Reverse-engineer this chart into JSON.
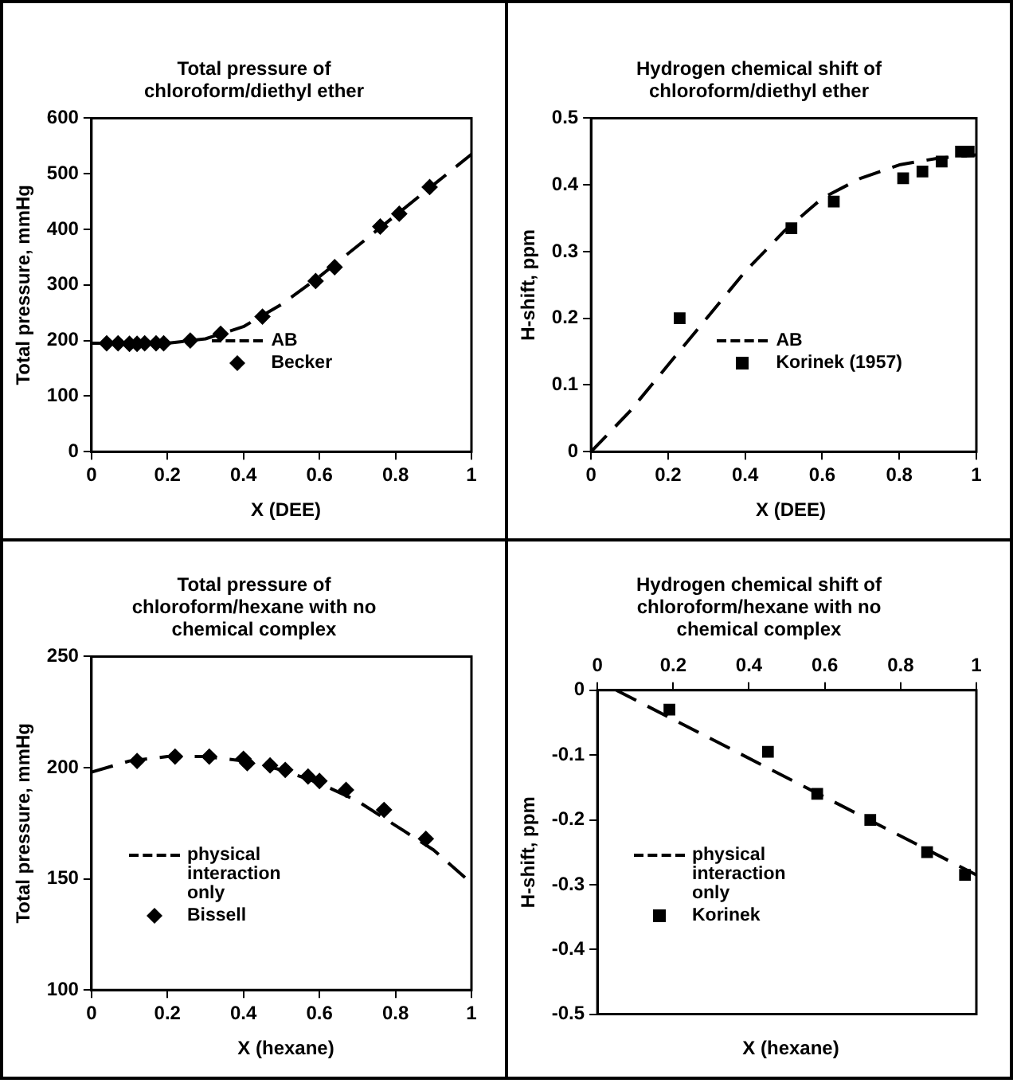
{
  "chart_data": [
    {
      "type": "line",
      "title": "Total pressure of chloroform/diethyl ether",
      "xlabel": "X (DEE)",
      "ylabel": "Total pressure, mmHg",
      "xlim": [
        0,
        1
      ],
      "xticks": [
        0,
        0.2,
        0.4,
        0.6,
        0.8,
        1
      ],
      "ylim": [
        0,
        600
      ],
      "yticks": [
        0,
        100,
        200,
        300,
        400,
        500,
        600
      ],
      "legend": "bottom right",
      "series": [
        {
          "name": "AB",
          "type": "line",
          "color": "#000000",
          "line_style": "dashed",
          "marker": "none",
          "x": [
            0,
            0.1,
            0.2,
            0.3,
            0.4,
            0.5,
            0.6,
            0.7,
            0.8,
            0.9,
            1
          ],
          "values": [
            195,
            195,
            195,
            203,
            225,
            265,
            315,
            370,
            425,
            480,
            535
          ]
        },
        {
          "name": "Becker",
          "type": "scatter",
          "color": "#000000",
          "marker": "diamond",
          "x": [
            0.04,
            0.07,
            0.1,
            0.12,
            0.14,
            0.17,
            0.19,
            0.26,
            0.34,
            0.45,
            0.59,
            0.64,
            0.76,
            0.81,
            0.89
          ],
          "values": [
            195,
            195,
            194,
            194,
            195,
            195,
            195,
            200,
            212,
            243,
            307,
            332,
            405,
            428,
            476
          ]
        }
      ]
    },
    {
      "type": "line",
      "title": "Hydrogen chemical shift of chloroform/diethyl ether",
      "xlabel": "X (DEE)",
      "ylabel": "H-shift, ppm",
      "xlim": [
        0,
        1
      ],
      "xticks": [
        0,
        0.2,
        0.4,
        0.6,
        0.8,
        1
      ],
      "ylim": [
        0,
        0.5
      ],
      "yticks": [
        0,
        0.1,
        0.2,
        0.3,
        0.4,
        0.5
      ],
      "legend": "bottom right",
      "series": [
        {
          "name": "AB",
          "type": "line",
          "color": "#000000",
          "line_style": "dashed",
          "marker": "none",
          "x": [
            0,
            0.1,
            0.2,
            0.3,
            0.4,
            0.5,
            0.6,
            0.7,
            0.8,
            0.9,
            1
          ],
          "values": [
            0,
            0.06,
            0.13,
            0.2,
            0.27,
            0.33,
            0.38,
            0.41,
            0.43,
            0.44,
            0.445
          ]
        },
        {
          "name": "Korinek (1957)",
          "type": "scatter",
          "color": "#000000",
          "marker": "square",
          "x": [
            0.23,
            0.52,
            0.63,
            0.81,
            0.86,
            0.91,
            0.96,
            0.98
          ],
          "values": [
            0.2,
            0.335,
            0.375,
            0.41,
            0.42,
            0.435,
            0.45,
            0.45
          ]
        }
      ]
    },
    {
      "type": "line",
      "title": "Total pressure of chloroform/hexane with no chemical complex",
      "xlabel": "X (hexane)",
      "ylabel": "Total pressure, mmHg",
      "xlim": [
        0,
        1
      ],
      "xticks": [
        0,
        0.2,
        0.4,
        0.6,
        0.8,
        1
      ],
      "ylim": [
        100,
        250
      ],
      "yticks": [
        100,
        150,
        200,
        250
      ],
      "legend": "bottom",
      "series": [
        {
          "name": "physical interaction only",
          "type": "line",
          "color": "#000000",
          "line_style": "dashed",
          "marker": "none",
          "x": [
            0,
            0.1,
            0.2,
            0.3,
            0.4,
            0.5,
            0.6,
            0.7,
            0.8,
            0.9,
            1
          ],
          "values": [
            198,
            203,
            205,
            205,
            203,
            199,
            193,
            185,
            174,
            163,
            148
          ]
        },
        {
          "name": "Bissell",
          "type": "scatter",
          "color": "#000000",
          "marker": "diamond",
          "x": [
            0.12,
            0.22,
            0.31,
            0.4,
            0.41,
            0.47,
            0.51,
            0.57,
            0.6,
            0.67,
            0.77,
            0.88
          ],
          "values": [
            203,
            205,
            205,
            204,
            202,
            201,
            199,
            196,
            194,
            190,
            181,
            168
          ]
        }
      ]
    },
    {
      "type": "line",
      "title": "Hydrogen chemical shift of chloroform/hexane with no chemical complex",
      "xlabel": "X (hexane)",
      "ylabel": "H-shift, ppm",
      "xlim": [
        0,
        1
      ],
      "xticks": [
        0,
        0.2,
        0.4,
        0.6,
        0.8,
        1
      ],
      "ylim": [
        -0.5,
        0
      ],
      "yticks": [
        -0.5,
        -0.4,
        -0.3,
        -0.2,
        -0.1,
        0
      ],
      "legend": "bottom",
      "series": [
        {
          "name": "physical interaction only",
          "type": "line",
          "color": "#000000",
          "line_style": "dashed",
          "marker": "none",
          "x": [
            0.05,
            1
          ],
          "values": [
            0,
            -0.285
          ]
        },
        {
          "name": "Korinek",
          "type": "scatter",
          "color": "#000000",
          "marker": "square",
          "x": [
            0.19,
            0.45,
            0.58,
            0.72,
            0.87,
            0.97
          ],
          "values": [
            -0.03,
            -0.095,
            -0.16,
            -0.2,
            -0.25,
            -0.285
          ]
        }
      ]
    }
  ]
}
